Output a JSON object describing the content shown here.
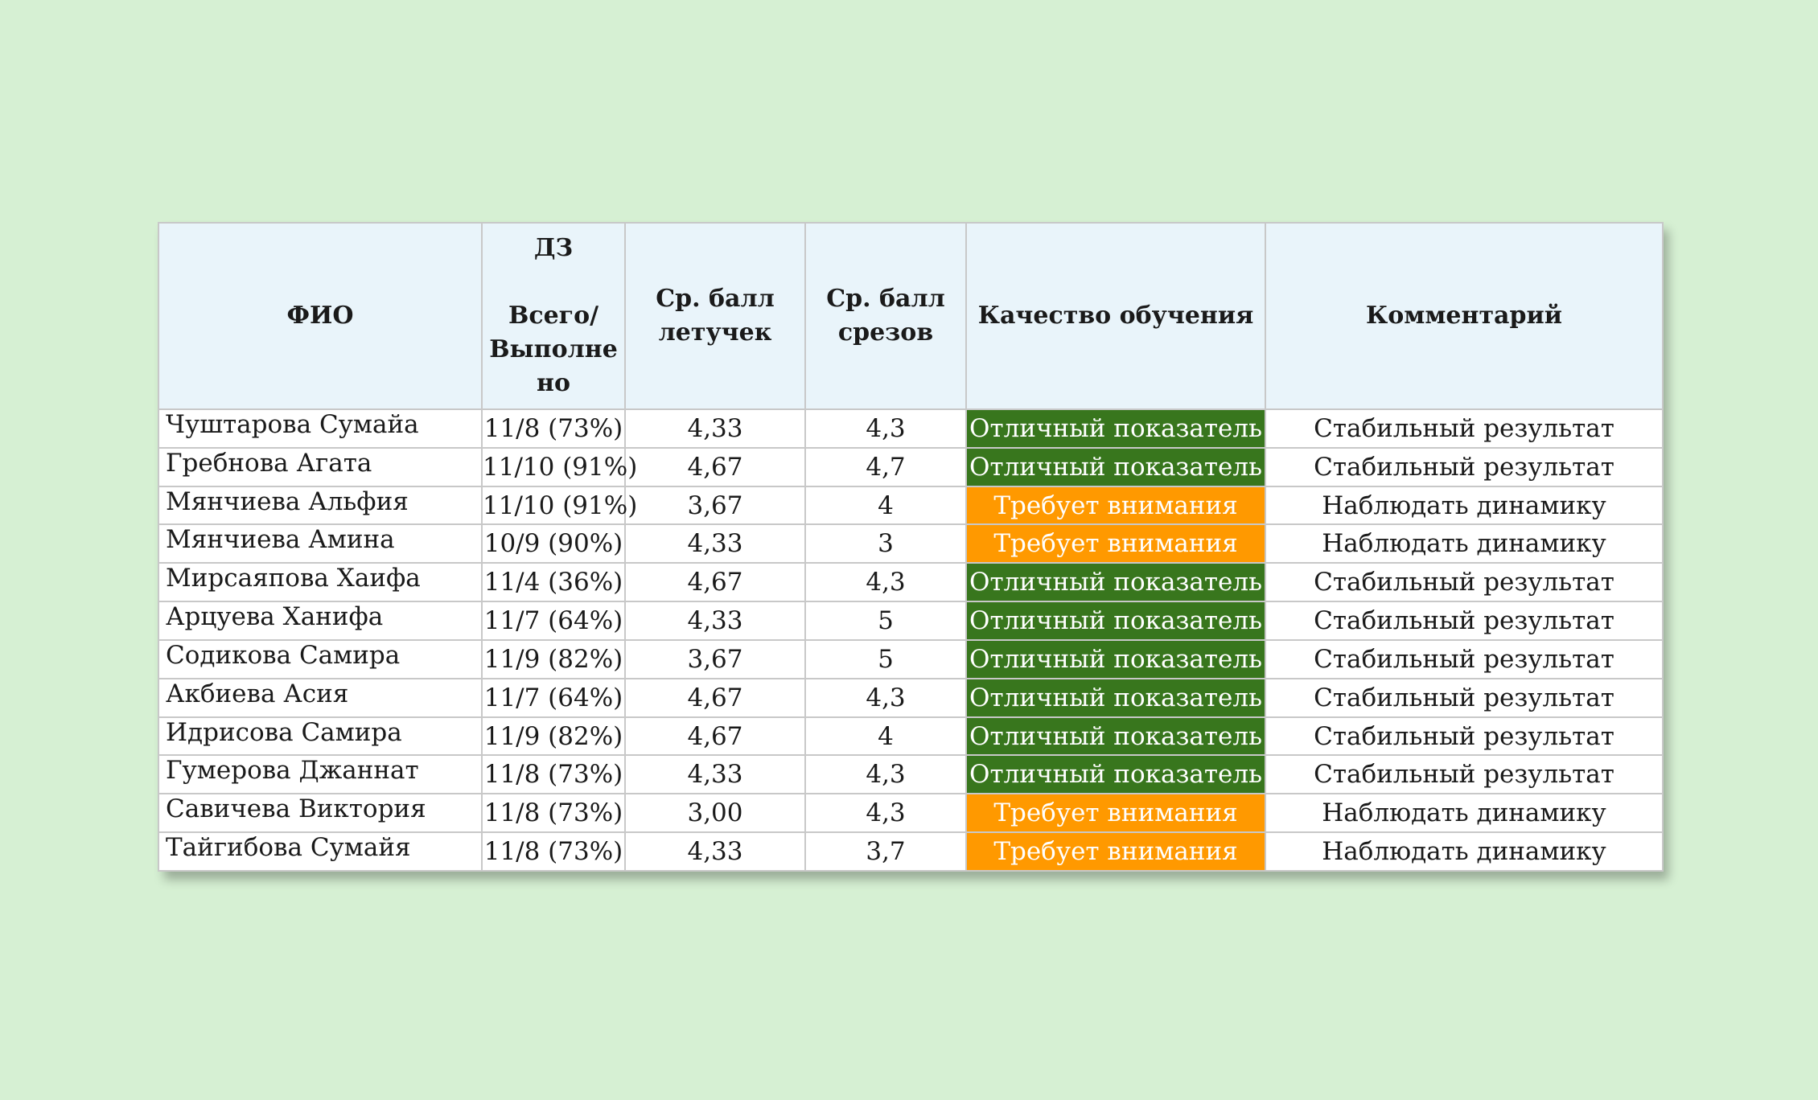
{
  "table": {
    "headers": {
      "name": "ФИО",
      "hw_title": "ДЗ",
      "hw_sub_line1": "Всего/",
      "hw_sub_line2": "Выполне",
      "hw_sub_line3": "но",
      "quiz_line1": "Ср. балл",
      "quiz_line2": "летучек",
      "test_line1": "Ср. балл",
      "test_line2": "срезов",
      "quality": "Качество обучения",
      "comment": "Комментарий"
    },
    "colors": {
      "good": "#38761d",
      "warn": "#ff9900",
      "header_bg": "#e9f4fa",
      "page_bg": "#d6f0d3"
    },
    "rows": [
      {
        "name": "Чуштарова Сумайа",
        "hw": "11/8 (73%)",
        "quiz": "4,33",
        "test": "4,3",
        "quality": "Отличный показатель",
        "comment": "Стабильный результат"
      },
      {
        "name": "Гребнова Агата",
        "hw": "11/10 (91%)",
        "quiz": "4,67",
        "test": "4,7",
        "quality": "Отличный показатель",
        "comment": "Стабильный результат"
      },
      {
        "name": "Мянчиева Альфия",
        "hw": "11/10 (91%)",
        "quiz": "3,67",
        "test": "4",
        "quality": "Требует внимания",
        "comment": "Наблюдать динамику"
      },
      {
        "name": "Мянчиева Амина",
        "hw": "10/9 (90%)",
        "quiz": "4,33",
        "test": "3",
        "quality": "Требует внимания",
        "comment": "Наблюдать динамику"
      },
      {
        "name": "Мирсаяпова Хаифа",
        "hw": "11/4 (36%)",
        "quiz": "4,67",
        "test": "4,3",
        "quality": "Отличный показатель",
        "comment": "Стабильный результат"
      },
      {
        "name": "Арцуева Ханифа",
        "hw": "11/7 (64%)",
        "quiz": "4,33",
        "test": "5",
        "quality": "Отличный показатель",
        "comment": "Стабильный результат"
      },
      {
        "name": "Содикова Самира",
        "hw": "11/9 (82%)",
        "quiz": "3,67",
        "test": "5",
        "quality": "Отличный показатель",
        "comment": "Стабильный результат"
      },
      {
        "name": "Акбиева Асия",
        "hw": "11/7 (64%)",
        "quiz": "4,67",
        "test": "4,3",
        "quality": "Отличный показатель",
        "comment": "Стабильный результат"
      },
      {
        "name": "Идрисова Самира",
        "hw": "11/9 (82%)",
        "quiz": "4,67",
        "test": "4",
        "quality": "Отличный показатель",
        "comment": "Стабильный результат"
      },
      {
        "name": "Гумерова Джаннат",
        "hw": "11/8 (73%)",
        "quiz": "4,33",
        "test": "4,3",
        "quality": "Отличный показатель",
        "comment": "Стабильный результат"
      },
      {
        "name": "Савичева Виктория",
        "hw": "11/8 (73%)",
        "quiz": "3,00",
        "test": "4,3",
        "quality": "Требует внимания",
        "comment": "Наблюдать динамику"
      },
      {
        "name": "Тайгибова Сумайя",
        "hw": "11/8 (73%)",
        "quiz": "4,33",
        "test": "3,7",
        "quality": "Требует внимания",
        "comment": "Наблюдать динамику"
      }
    ]
  }
}
